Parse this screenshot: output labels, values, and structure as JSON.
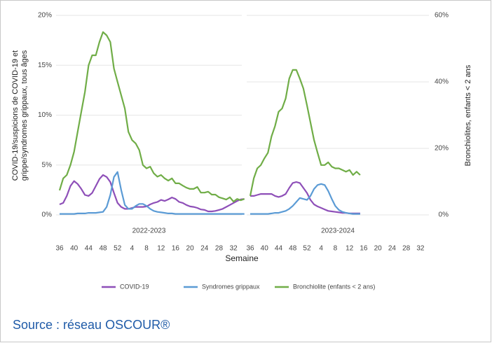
{
  "chart_data": [
    {
      "type": "line",
      "title": "2022-2023",
      "ylabel": [
        "COVID-19/suspicions de COVID-19 et",
        "grippe/syndromes grippaux, tous âges"
      ],
      "xlabel": "Semaine",
      "categories": [
        36,
        null,
        null,
        null,
        40,
        null,
        null,
        null,
        44,
        null,
        null,
        null,
        48,
        null,
        null,
        null,
        52,
        null,
        null,
        null,
        4,
        null,
        null,
        null,
        8,
        null,
        null,
        null,
        12,
        null,
        null,
        null,
        16,
        null,
        null,
        null,
        20,
        null,
        null,
        null,
        24,
        null,
        null,
        null,
        28,
        null,
        null,
        null,
        32,
        null,
        null,
        null
      ],
      "ylim": [
        0,
        20
      ],
      "y2lim": [
        0,
        60
      ],
      "yticks": [
        {
          "value": 0,
          "label": "0%"
        },
        {
          "value": 5,
          "label": "5%"
        },
        {
          "value": 10,
          "label": "10%"
        },
        {
          "value": 15,
          "label": "15%"
        },
        {
          "value": 20,
          "label": "20%"
        }
      ],
      "grid": true,
      "series": [
        {
          "name": "COVID-19",
          "color": "#8e4fb8",
          "values": [
            1.05,
            1.2,
            1.9,
            2.9,
            3.4,
            3.1,
            2.6,
            2.0,
            1.9,
            2.2,
            2.9,
            3.6,
            4.0,
            3.8,
            3.3,
            2.2,
            1.2,
            0.8,
            0.6,
            0.6,
            0.7,
            0.8,
            0.8,
            0.8,
            0.85,
            1.05,
            1.2,
            1.3,
            1.5,
            1.4,
            1.55,
            1.75,
            1.6,
            1.3,
            1.2,
            1.0,
            0.85,
            0.8,
            0.7,
            0.55,
            0.5,
            0.35,
            0.35,
            0.4,
            0.5,
            0.6,
            0.8,
            1.0,
            1.2,
            1.4,
            1.55,
            1.6
          ]
        },
        {
          "name": "Syndromes grippaux",
          "color": "#5b9bd5",
          "values": [
            0.1,
            0.1,
            0.1,
            0.1,
            0.1,
            0.15,
            0.15,
            0.15,
            0.2,
            0.2,
            0.2,
            0.25,
            0.3,
            0.8,
            2.0,
            3.8,
            4.3,
            2.5,
            1.0,
            0.6,
            0.6,
            0.9,
            1.1,
            1.1,
            0.9,
            0.6,
            0.4,
            0.3,
            0.25,
            0.2,
            0.15,
            0.15,
            0.1,
            0.1,
            0.1,
            0.1,
            0.1,
            0.1,
            0.1,
            0.1,
            0.1,
            0.1,
            0.1,
            0.1,
            0.1,
            0.1,
            0.1,
            0.1,
            0.1,
            0.1,
            0.1,
            0.1
          ]
        },
        {
          "name": "Bronchiolite (enfants < 2 ans)",
          "color": "#70ad47",
          "axis": "y2",
          "values": [
            7.4,
            11,
            12,
            15,
            19,
            25,
            31,
            37,
            45,
            48,
            48,
            52,
            55,
            54,
            52,
            44,
            40,
            36,
            32,
            25,
            22.5,
            21.5,
            19.5,
            15,
            14,
            14.5,
            12.5,
            11.5,
            12,
            11,
            10.3,
            11,
            9.5,
            9.5,
            8.8,
            8.2,
            7.8,
            7.8,
            8.4,
            6.7,
            6.7,
            7,
            6.1,
            6.1,
            5.3,
            5,
            4.6,
            5.3,
            4,
            4.8,
            4.4,
            4.8
          ]
        }
      ]
    },
    {
      "type": "line",
      "title": "2023-2024",
      "y2label": "Bronchiolites, enfants < 2 ans",
      "categories": [
        36,
        null,
        null,
        null,
        40,
        null,
        null,
        null,
        44,
        null,
        null,
        null,
        48,
        null,
        null,
        null,
        52,
        null,
        null,
        null,
        4,
        null,
        null,
        null,
        8,
        null,
        null,
        null,
        12,
        null,
        null,
        null,
        16,
        null,
        null,
        null,
        20,
        null,
        null,
        null,
        24,
        null,
        null,
        null,
        28,
        null,
        null,
        null,
        32,
        null,
        null,
        null
      ],
      "ylim": [
        0,
        20
      ],
      "y2lim": [
        0,
        60
      ],
      "y2ticks": [
        {
          "value": 0,
          "label": "0%"
        },
        {
          "value": 20,
          "label": "20%"
        },
        {
          "value": 40,
          "label": "40%"
        },
        {
          "value": 60,
          "label": "60%"
        }
      ],
      "grid": true,
      "series": [
        {
          "color": "#8e4fb8",
          "values": [
            1.9,
            1.9,
            2.0,
            2.1,
            2.1,
            2.1,
            2.1,
            1.9,
            1.8,
            1.9,
            2.1,
            2.7,
            3.2,
            3.3,
            3.2,
            2.7,
            2.2,
            1.5,
            1.05,
            0.85,
            0.7,
            0.55,
            0.4,
            0.35,
            0.3,
            0.25,
            0.2,
            0.2,
            0.15,
            0.15,
            0.15,
            0.15,
            null,
            null,
            null,
            null,
            null,
            null,
            null,
            null,
            null,
            null,
            null,
            null,
            null,
            null,
            null,
            null,
            null,
            null,
            null,
            null
          ]
        },
        {
          "color": "#5b9bd5",
          "values": [
            0.1,
            0.1,
            0.1,
            0.1,
            0.1,
            0.1,
            0.15,
            0.2,
            0.2,
            0.3,
            0.4,
            0.6,
            0.9,
            1.3,
            1.7,
            1.6,
            1.5,
            1.9,
            2.6,
            3.0,
            3.1,
            3.0,
            2.4,
            1.6,
            0.9,
            0.5,
            0.3,
            0.2,
            0.15,
            0.1,
            0.1,
            0.1,
            null,
            null,
            null,
            null,
            null,
            null,
            null,
            null,
            null,
            null,
            null,
            null,
            null,
            null,
            null,
            null,
            null,
            null,
            null,
            null
          ]
        },
        {
          "color": "#70ad47",
          "axis": "y2",
          "values": [
            5.7,
            11,
            14,
            15,
            17,
            18.7,
            23.6,
            26.7,
            31,
            32,
            35,
            41,
            43.6,
            43.6,
            41,
            38,
            33,
            27.8,
            22.5,
            18.7,
            15,
            15,
            15.8,
            14.5,
            14,
            14,
            13.5,
            13,
            13.5,
            12,
            13,
            12,
            null,
            null,
            null,
            null,
            null,
            null,
            null,
            null,
            null,
            null,
            null,
            null,
            null,
            null,
            null,
            null,
            null,
            null,
            null,
            null
          ]
        }
      ]
    }
  ],
  "source": "Source : réseau OSCOUR®"
}
